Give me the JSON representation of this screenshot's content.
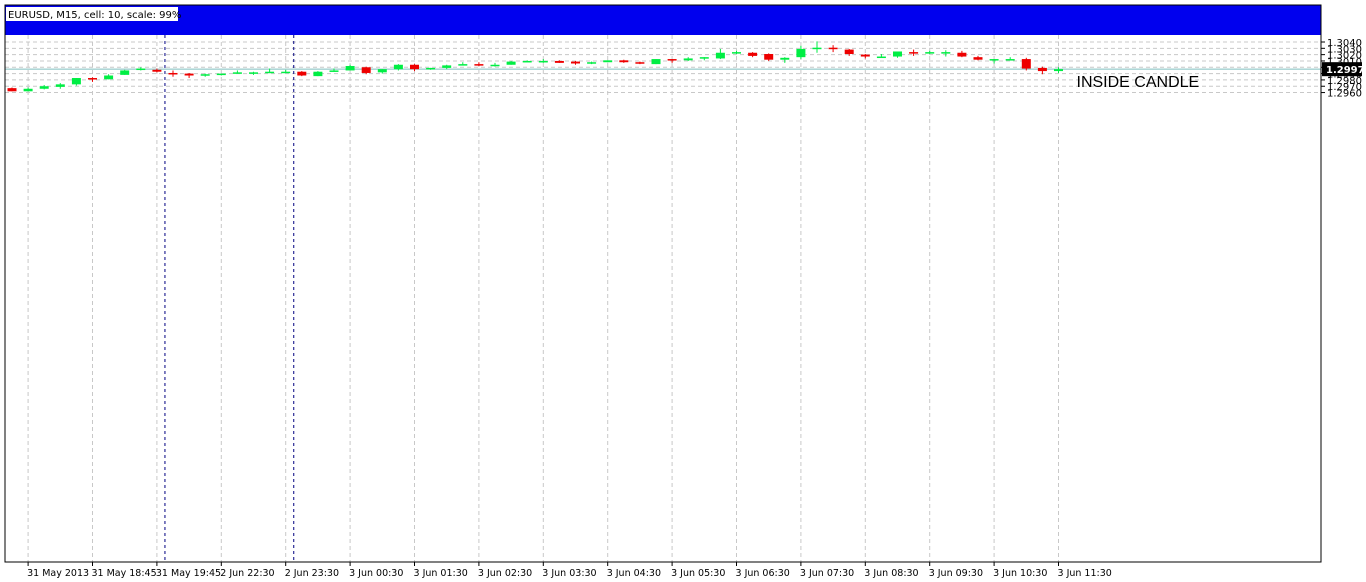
{
  "window": {
    "header_text": "EURUSD, M15, cell: 10, scale: 99%"
  },
  "colors": {
    "bull": "#00ee44",
    "bear": "#ee0000",
    "grid": "#c8c8c8",
    "header_band": "#0000ee",
    "current_line": "#7fbfbf",
    "price_tag_bg": "#000000",
    "axis": "#000000"
  },
  "chart_data": {
    "type": "candlestick",
    "symbol": "EURUSD",
    "timeframe": "M15",
    "ylim": [
      1.2955,
      1.3045
    ],
    "grid": true,
    "yticks": [
      "1.3040",
      "1.3030",
      "1.3020",
      "1.3010",
      "1.3000",
      "1.2990",
      "1.2980",
      "1.2970",
      "1.2960"
    ],
    "xticks": [
      {
        "index": 1,
        "label": "31 May 2013"
      },
      {
        "index": 5,
        "label": "31 May 18:45"
      },
      {
        "index": 9,
        "label": "31 May 19:45"
      },
      {
        "index": 13,
        "label": "2 Jun 22:30"
      },
      {
        "index": 17,
        "label": "2 Jun 23:30"
      },
      {
        "index": 21,
        "label": "3 Jun 00:30"
      },
      {
        "index": 25,
        "label": "3 Jun 01:30"
      },
      {
        "index": 29,
        "label": "3 Jun 02:30"
      },
      {
        "index": 33,
        "label": "3 Jun 03:30"
      },
      {
        "index": 37,
        "label": "3 Jun 04:30"
      },
      {
        "index": 41,
        "label": "3 Jun 05:30"
      },
      {
        "index": 45,
        "label": "3 Jun 06:30"
      },
      {
        "index": 49,
        "label": "3 Jun 07:30"
      },
      {
        "index": 53,
        "label": "3 Jun 08:30"
      },
      {
        "index": 57,
        "label": "3 Jun 09:30"
      },
      {
        "index": 61,
        "label": "3 Jun 10:30"
      },
      {
        "index": 65,
        "label": "3 Jun 11:30"
      }
    ],
    "period_separators": [
      10,
      18
    ],
    "current_price": 1.2997,
    "current_price_label": "1.2997",
    "annotation": {
      "text": "INSIDE CANDLE",
      "candle_index": 65
    },
    "candles": [
      {
        "o": 1.2967,
        "h": 1.2968,
        "l": 1.2962,
        "c": 1.2962
      },
      {
        "o": 1.2962,
        "h": 1.2968,
        "l": 1.2962,
        "c": 1.2966
      },
      {
        "o": 1.2966,
        "h": 1.2972,
        "l": 1.2965,
        "c": 1.297
      },
      {
        "o": 1.2969,
        "h": 1.2975,
        "l": 1.2966,
        "c": 1.2973
      },
      {
        "o": 1.2973,
        "h": 1.2983,
        "l": 1.2971,
        "c": 1.2983
      },
      {
        "o": 1.2983,
        "h": 1.2984,
        "l": 1.2977,
        "c": 1.2982
      },
      {
        "o": 1.2981,
        "h": 1.2989,
        "l": 1.2981,
        "c": 1.2987
      },
      {
        "o": 1.2988,
        "h": 1.2996,
        "l": 1.2988,
        "c": 1.2995
      },
      {
        "o": 1.2996,
        "h": 1.3,
        "l": 1.2995,
        "c": 1.2998
      },
      {
        "o": 1.2996,
        "h": 1.2998,
        "l": 1.2992,
        "c": 1.2993
      },
      {
        "o": 1.2991,
        "h": 1.2995,
        "l": 1.2985,
        "c": 1.299
      },
      {
        "o": 1.299,
        "h": 1.2991,
        "l": 1.2983,
        "c": 1.2987
      },
      {
        "o": 1.2987,
        "h": 1.299,
        "l": 1.2985,
        "c": 1.2989
      },
      {
        "o": 1.2989,
        "h": 1.299,
        "l": 1.2987,
        "c": 1.299
      },
      {
        "o": 1.299,
        "h": 1.2995,
        "l": 1.299,
        "c": 1.2992
      },
      {
        "o": 1.2991,
        "h": 1.2993,
        "l": 1.2988,
        "c": 1.2992
      },
      {
        "o": 1.2993,
        "h": 1.2998,
        "l": 1.2992,
        "c": 1.2993
      },
      {
        "o": 1.2993,
        "h": 1.2996,
        "l": 1.2991,
        "c": 1.2993
      },
      {
        "o": 1.2993,
        "h": 1.2994,
        "l": 1.2986,
        "c": 1.2987
      },
      {
        "o": 1.2986,
        "h": 1.2994,
        "l": 1.2986,
        "c": 1.2993
      },
      {
        "o": 1.2993,
        "h": 1.2998,
        "l": 1.2993,
        "c": 1.2995
      },
      {
        "o": 1.2995,
        "h": 1.3004,
        "l": 1.2995,
        "c": 1.3002
      },
      {
        "o": 1.3,
        "h": 1.3001,
        "l": 1.2989,
        "c": 1.2991
      },
      {
        "o": 1.2992,
        "h": 1.2997,
        "l": 1.299,
        "c": 1.2997
      },
      {
        "o": 1.2997,
        "h": 1.3005,
        "l": 1.2995,
        "c": 1.3004
      },
      {
        "o": 1.3004,
        "h": 1.3005,
        "l": 1.2994,
        "c": 1.2997
      },
      {
        "o": 1.2997,
        "h": 1.2999,
        "l": 1.2996,
        "c": 1.2999
      },
      {
        "o": 1.2999,
        "h": 1.3004,
        "l": 1.2997,
        "c": 1.3003
      },
      {
        "o": 1.3003,
        "h": 1.3008,
        "l": 1.3003,
        "c": 1.3005
      },
      {
        "o": 1.3005,
        "h": 1.3008,
        "l": 1.3002,
        "c": 1.3003
      },
      {
        "o": 1.3003,
        "h": 1.3007,
        "l": 1.3001,
        "c": 1.3004
      },
      {
        "o": 1.3004,
        "h": 1.301,
        "l": 1.3004,
        "c": 1.3009
      },
      {
        "o": 1.3009,
        "h": 1.3011,
        "l": 1.3009,
        "c": 1.301
      },
      {
        "o": 1.301,
        "h": 1.3013,
        "l": 1.3007,
        "c": 1.301
      },
      {
        "o": 1.301,
        "h": 1.3011,
        "l": 1.3007,
        "c": 1.3007
      },
      {
        "o": 1.3009,
        "h": 1.301,
        "l": 1.3004,
        "c": 1.3006
      },
      {
        "o": 1.3008,
        "h": 1.3009,
        "l": 1.3005,
        "c": 1.3008
      },
      {
        "o": 1.3008,
        "h": 1.3011,
        "l": 1.3008,
        "c": 1.3011
      },
      {
        "o": 1.3011,
        "h": 1.3012,
        "l": 1.3007,
        "c": 1.3008
      },
      {
        "o": 1.3008,
        "h": 1.3009,
        "l": 1.3005,
        "c": 1.3006
      },
      {
        "o": 1.3005,
        "h": 1.3013,
        "l": 1.3005,
        "c": 1.3013
      },
      {
        "o": 1.3013,
        "h": 1.3013,
        "l": 1.3007,
        "c": 1.3011
      },
      {
        "o": 1.3011,
        "h": 1.3016,
        "l": 1.301,
        "c": 1.3014
      },
      {
        "o": 1.3014,
        "h": 1.3016,
        "l": 1.3011,
        "c": 1.3016
      },
      {
        "o": 1.3014,
        "h": 1.3029,
        "l": 1.3013,
        "c": 1.3023
      },
      {
        "o": 1.3023,
        "h": 1.3026,
        "l": 1.3021,
        "c": 1.3024
      },
      {
        "o": 1.3023,
        "h": 1.3024,
        "l": 1.3016,
        "c": 1.3018
      },
      {
        "o": 1.3021,
        "h": 1.3022,
        "l": 1.301,
        "c": 1.3012
      },
      {
        "o": 1.3012,
        "h": 1.3016,
        "l": 1.3007,
        "c": 1.3015
      },
      {
        "o": 1.3016,
        "h": 1.3034,
        "l": 1.3013,
        "c": 1.3029
      },
      {
        "o": 1.303,
        "h": 1.3041,
        "l": 1.3023,
        "c": 1.3031
      },
      {
        "o": 1.3031,
        "h": 1.3035,
        "l": 1.3024,
        "c": 1.3029
      },
      {
        "o": 1.3028,
        "h": 1.3029,
        "l": 1.3018,
        "c": 1.3021
      },
      {
        "o": 1.302,
        "h": 1.3021,
        "l": 1.3014,
        "c": 1.3017
      },
      {
        "o": 1.3017,
        "h": 1.3021,
        "l": 1.3016,
        "c": 1.3017
      },
      {
        "o": 1.3017,
        "h": 1.3025,
        "l": 1.3015,
        "c": 1.3025
      },
      {
        "o": 1.3024,
        "h": 1.3028,
        "l": 1.3018,
        "c": 1.3022
      },
      {
        "o": 1.3022,
        "h": 1.3026,
        "l": 1.3021,
        "c": 1.3024
      },
      {
        "o": 1.3022,
        "h": 1.3027,
        "l": 1.3017,
        "c": 1.3024
      },
      {
        "o": 1.3023,
        "h": 1.3026,
        "l": 1.3016,
        "c": 1.3017
      },
      {
        "o": 1.3016,
        "h": 1.3018,
        "l": 1.3011,
        "c": 1.3012
      },
      {
        "o": 1.3013,
        "h": 1.3013,
        "l": 1.3006,
        "c": 1.3013
      },
      {
        "o": 1.3012,
        "h": 1.3016,
        "l": 1.3011,
        "c": 1.3013
      },
      {
        "o": 1.3013,
        "h": 1.3015,
        "l": 1.2995,
        "c": 1.2998
      },
      {
        "o": 1.2999,
        "h": 1.3001,
        "l": 1.2989,
        "c": 1.2994
      },
      {
        "o": 1.2994,
        "h": 1.3,
        "l": 1.2991,
        "c": 1.2997
      }
    ]
  }
}
